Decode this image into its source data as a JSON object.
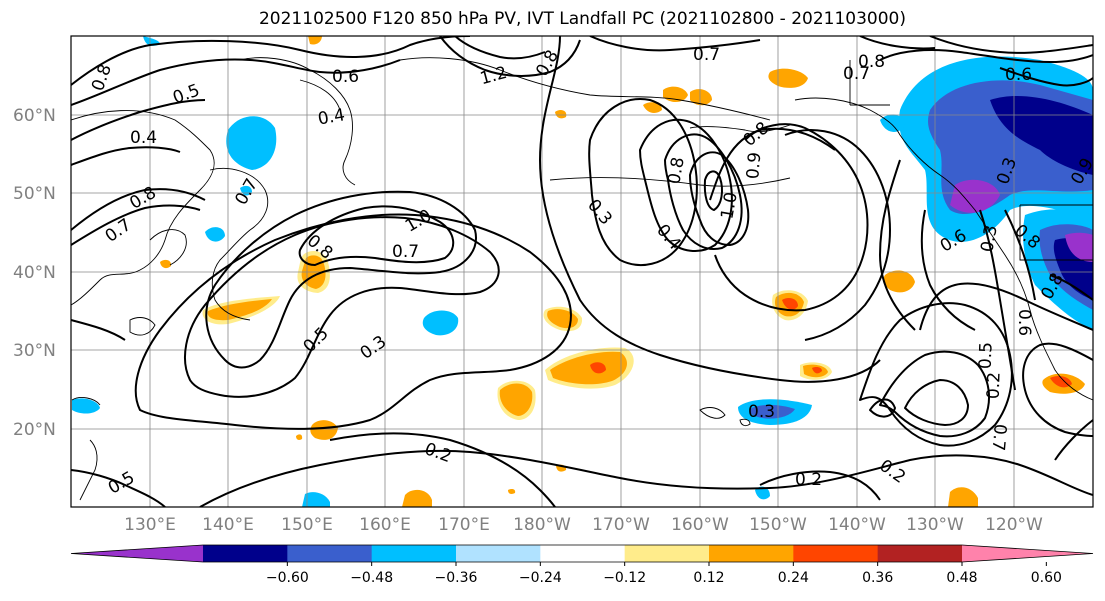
{
  "title": "2021102500 F120 850 hPa PV, IVT Landfall PC (2021102800 - 2021103000)",
  "map": {
    "lat_labels": [
      "60°N",
      "50°N",
      "40°N",
      "30°N",
      "20°N"
    ],
    "lat_values": [
      60,
      50,
      40,
      30,
      20
    ],
    "lon_labels": [
      "130°E",
      "140°E",
      "150°E",
      "160°E",
      "170°E",
      "180°W",
      "170°W",
      "160°W",
      "150°W",
      "140°W",
      "130°W",
      "120°W"
    ],
    "lon_values": [
      130,
      140,
      150,
      160,
      170,
      180,
      190,
      200,
      210,
      220,
      230,
      240
    ],
    "extent": {
      "lon_min": 120,
      "lon_max": 250,
      "lat_min": 10,
      "lat_max": 70
    },
    "contour_labels": [
      "0.7",
      "0.8",
      "0.6",
      "0.5",
      "1.2",
      "0.8",
      "0.7",
      "0.8",
      "0.6",
      "0.4",
      "0.4",
      "0.7",
      "0.8",
      "0.7",
      "0.8",
      "1.0",
      "0.7",
      "0.8",
      "0.3",
      "0.4",
      "1.0",
      "0.9",
      "0.8",
      "0.5",
      "0.3",
      "0.2",
      "0.3",
      "0.2",
      "0.2",
      "0.5",
      "0.7",
      "0.8",
      "0.6",
      "0.3",
      "0.5",
      "0.6",
      "0.8",
      "0.2",
      "0.3",
      "0.9"
    ]
  },
  "colorbar": {
    "tick_labels": [
      "−0.60",
      "−0.48",
      "−0.36",
      "−0.24",
      "−0.12",
      "0.12",
      "0.24",
      "0.36",
      "0.48",
      "0.60"
    ],
    "colors": [
      "#9932cc",
      "#00008b",
      "#3a5fcd",
      "#00bfff",
      "#b0e2ff",
      "#ffffff",
      "#ffec8b",
      "#ffa500",
      "#ff4500",
      "#b22222",
      "#ff82ab"
    ]
  },
  "shading_colors": {
    "orange": "#ffa500",
    "yellow": "#ffec8b",
    "red": "#ff4500",
    "lightblue": "#b0e2ff",
    "deepskyblue": "#00bfff",
    "royalblue": "#3a5fcd",
    "navy": "#00008b",
    "purple": "#9932cc"
  }
}
